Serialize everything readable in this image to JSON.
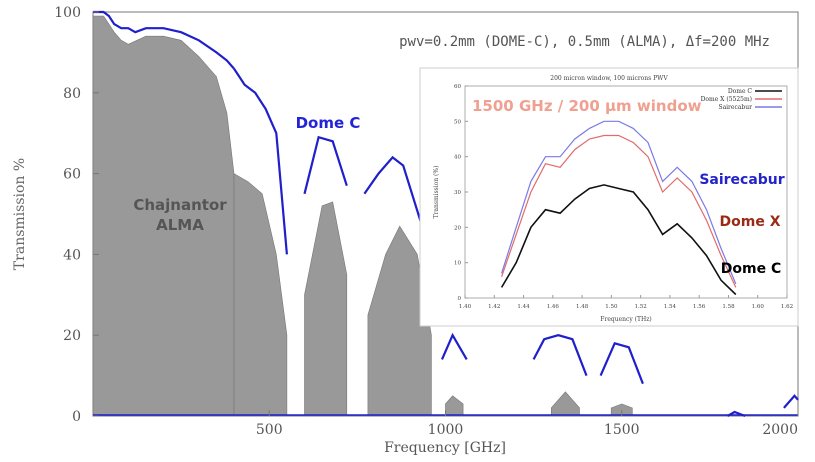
{
  "chart_data": [
    {
      "type": "area",
      "xlabel": "Frequency [GHz]",
      "ylabel": "Transmission %",
      "xlim": [
        0,
        2000
      ],
      "ylim": [
        0,
        100
      ],
      "xticks": [
        500,
        1000,
        1500,
        2000
      ],
      "yticks": [
        0,
        20,
        40,
        60,
        80,
        100
      ],
      "annotation": "pwv=0.2mm (DOME-C), 0.5mm (ALMA), Δf=200 MHz",
      "grid": false,
      "series": [
        {
          "name": "Dome C",
          "color": "#1f1fcc",
          "windows": [
            {
              "x": [
                0,
                30,
                45,
                60,
                80,
                100,
                120,
                150,
                200,
                250,
                300,
                350,
                380,
                400
              ],
              "y": [
                100,
                100,
                99,
                97,
                96,
                96,
                95,
                96,
                96,
                95,
                93,
                90,
                88,
                86
              ]
            },
            {
              "x": [
                400,
                430,
                460,
                490,
                520,
                550
              ],
              "y": [
                86,
                82,
                80,
                76,
                70,
                40
              ]
            },
            {
              "x": [
                600,
                640,
                680,
                720
              ],
              "y": [
                55,
                69,
                68,
                57
              ]
            },
            {
              "x": [
                770,
                810,
                850,
                880,
                930,
                960
              ],
              "y": [
                55,
                60,
                64,
                62,
                48,
                40
              ]
            },
            {
              "x": [
                990,
                1020,
                1060
              ],
              "y": [
                14,
                20,
                14
              ]
            },
            {
              "x": [
                1250,
                1280,
                1320,
                1360,
                1400
              ],
              "y": [
                14,
                19,
                20,
                19,
                10
              ]
            },
            {
              "x": [
                1440,
                1480,
                1520,
                1560
              ],
              "y": [
                10,
                18,
                17,
                8
              ]
            },
            {
              "x": [
                1800,
                1820,
                1850
              ],
              "y": [
                0,
                1,
                0
              ]
            },
            {
              "x": [
                1960,
                1990,
                2000
              ],
              "y": [
                2,
                5,
                4
              ]
            }
          ]
        },
        {
          "name": "Chajnantor ALMA",
          "color": "#999999",
          "windows": [
            {
              "x": [
                0,
                30,
                45,
                60,
                80,
                100,
                150,
                200,
                250,
                300,
                350,
                380,
                400
              ],
              "y": [
                99,
                99,
                97,
                95,
                93,
                92,
                94,
                94,
                93,
                89,
                84,
                75,
                60
              ]
            },
            {
              "x": [
                400,
                440,
                480,
                520,
                550
              ],
              "y": [
                60,
                58,
                55,
                40,
                20
              ]
            },
            {
              "x": [
                600,
                650,
                680,
                720
              ],
              "y": [
                30,
                52,
                53,
                35
              ]
            },
            {
              "x": [
                780,
                830,
                870,
                920,
                960
              ],
              "y": [
                25,
                40,
                47,
                40,
                20
              ]
            },
            {
              "x": [
                1000,
                1020,
                1050
              ],
              "y": [
                3,
                5,
                3
              ]
            },
            {
              "x": [
                1300,
                1340,
                1380
              ],
              "y": [
                2,
                6,
                2
              ]
            },
            {
              "x": [
                1470,
                1500,
                1530
              ],
              "y": [
                2,
                3,
                2
              ]
            }
          ]
        }
      ],
      "labels": [
        {
          "text": "Dome C",
          "color": "#2323d8"
        },
        {
          "text": "Chajnantor",
          "color": "#555555"
        },
        {
          "text": "ALMA",
          "color": "#555555"
        }
      ]
    },
    {
      "type": "line",
      "title": "200 micron window, 100 microns PWV",
      "xlabel": "Frequency (THz)",
      "ylabel": "Transmission (%)",
      "xlim": [
        1.4,
        1.62
      ],
      "ylim": [
        0,
        60
      ],
      "xticks": [
        1.4,
        1.42,
        1.44,
        1.46,
        1.48,
        1.5,
        1.52,
        1.54,
        1.56,
        1.58,
        1.6,
        1.62
      ],
      "yticks": [
        0,
        10,
        20,
        30,
        40,
        50,
        60
      ],
      "overlay_label": {
        "text": "1500 GHz / 200 µm window",
        "color": "#f0a090"
      },
      "series": [
        {
          "name": "Dome C",
          "color": "#111111",
          "x": [
            1.425,
            1.435,
            1.445,
            1.455,
            1.465,
            1.475,
            1.485,
            1.495,
            1.505,
            1.515,
            1.525,
            1.535,
            1.545,
            1.555,
            1.565,
            1.575,
            1.585
          ],
          "y": [
            3,
            10,
            20,
            25,
            24,
            28,
            31,
            32,
            31,
            30,
            25,
            18,
            21,
            17,
            12,
            5,
            1
          ]
        },
        {
          "name": "Dome X (5525m)",
          "color": "#e36b6b",
          "x": [
            1.425,
            1.435,
            1.445,
            1.455,
            1.465,
            1.475,
            1.485,
            1.495,
            1.505,
            1.515,
            1.525,
            1.535,
            1.545,
            1.555,
            1.565,
            1.575,
            1.585
          ],
          "y": [
            6,
            18,
            30,
            38,
            37,
            42,
            45,
            46,
            46,
            44,
            40,
            30,
            34,
            30,
            22,
            12,
            3
          ]
        },
        {
          "name": "Sairecabur",
          "color": "#7a7ae6",
          "x": [
            1.425,
            1.435,
            1.445,
            1.455,
            1.465,
            1.475,
            1.485,
            1.495,
            1.505,
            1.515,
            1.525,
            1.535,
            1.545,
            1.555,
            1.565,
            1.575,
            1.585
          ],
          "y": [
            7,
            20,
            33,
            40,
            40,
            45,
            48,
            50,
            50,
            48,
            44,
            33,
            37,
            33,
            25,
            14,
            4
          ]
        }
      ],
      "labels": [
        {
          "text": "Sairecabur",
          "color": "#2323cc"
        },
        {
          "text": "Dome X",
          "color": "#9a2a14"
        },
        {
          "text": "Dome C",
          "color": "#000000"
        }
      ]
    }
  ]
}
